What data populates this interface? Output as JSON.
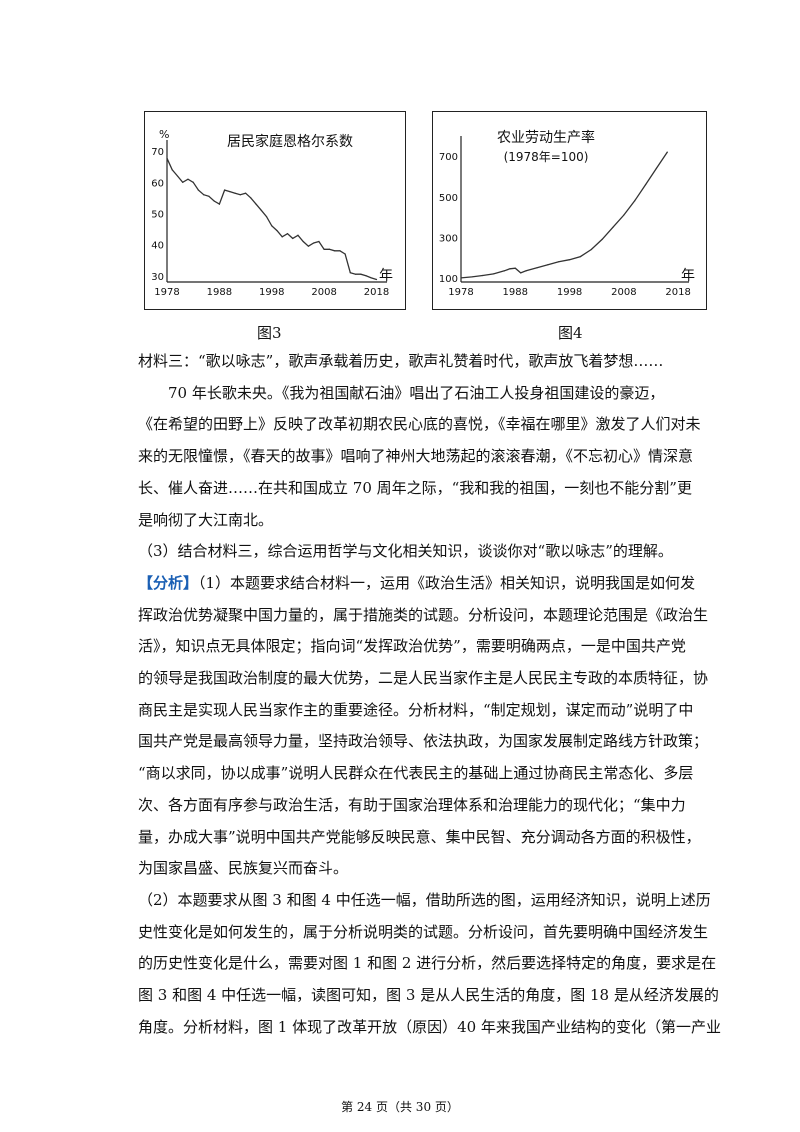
{
  "chart_data": [
    {
      "type": "line",
      "title": "居民家庭恩格尔系数",
      "ylabel": "%",
      "xlabel": "年",
      "x_ticks": [
        "1978",
        "1988",
        "1998",
        "2008",
        "2018"
      ],
      "y_ticks": [
        "70",
        "60",
        "50",
        "40",
        "30"
      ],
      "ylim": [
        28,
        71
      ],
      "xlim": [
        1978,
        2020
      ],
      "series": [
        {
          "x": [
            1978,
            1979,
            1980,
            1981,
            1982,
            1983,
            1984,
            1985,
            1986,
            1987,
            1988,
            1989,
            1990,
            1991,
            1992,
            1993,
            1994,
            1995,
            1996,
            1997,
            1998,
            1999,
            2000,
            2001,
            2002,
            2003,
            2004,
            2005,
            2006,
            2007,
            2008,
            2009,
            2010,
            2011,
            2012,
            2013,
            2014,
            2015,
            2016,
            2017,
            2018
          ],
          "values": [
            67.7,
            64,
            62,
            60,
            61,
            60,
            57.5,
            56,
            55.5,
            54,
            53,
            57.5,
            57,
            56.5,
            56,
            56.5,
            55,
            53,
            51,
            49,
            46,
            44.5,
            42.5,
            43.5,
            42,
            43,
            41,
            39.5,
            40.5,
            41,
            38.5,
            38.5,
            38,
            38,
            37,
            31,
            30.5,
            30.5,
            30,
            29.3,
            28.8
          ]
        }
      ]
    },
    {
      "type": "line",
      "title": "农业劳动生产率",
      "subtitle": "(1978年=100)",
      "xlabel": "年",
      "x_ticks": [
        "1978",
        "1988",
        "1998",
        "2008",
        "2018"
      ],
      "y_ticks": [
        "700",
        "500",
        "300",
        "100"
      ],
      "ylim": [
        80,
        760
      ],
      "xlim": [
        1978,
        2020
      ],
      "series": [
        {
          "x": [
            1978,
            1980,
            1982,
            1984,
            1986,
            1987,
            1988,
            1989,
            1990,
            1992,
            1994,
            1996,
            1998,
            2000,
            2002,
            2004,
            2006,
            2008,
            2010,
            2012,
            2014,
            2016
          ],
          "values": [
            100,
            105,
            112,
            120,
            135,
            145,
            148,
            125,
            135,
            150,
            165,
            180,
            190,
            205,
            240,
            290,
            350,
            410,
            480,
            560,
            640,
            720
          ]
        }
      ]
    }
  ],
  "figures": {
    "fig3": "图3",
    "fig4": "图4"
  },
  "body": {
    "lines": [
      "材料三：“歌以咏志”，歌声承载着历史，歌声礼赞着时代，歌声放飞着梦想……",
      "　　70 年长歌未央。《我为祖国献石油》唱出了石油工人投身祖国建设的豪迈，",
      "《在希望的田野上》反映了改革初期农民心底的喜悦，《幸福在哪里》激发了人们对未",
      "来的无限憧憬，《春天的故事》唱响了神州大地荡起的滚滚春潮，《不忘初心》情深意",
      "长、催人奋进……在共和国成立 70 周年之际，“我和我的祖国，一刻也不能分割”更",
      "是响彻了大江南北。",
      "（3）结合材料三，综合运用哲学与文化相关知识，谈谈你对“歌以咏志”的理解。"
    ],
    "analysis_tag": "【分析】",
    "analysis_first": "（1）本题要求结合材料一，运用《政治生活》相关知识，说明我国是如何发",
    "analysis_lines": [
      "挥政治优势凝聚中国力量的，属于措施类的试题。分析设问，本题理论范围是《政治生",
      "活》，知识点无具体限定；指向词“发挥政治优势”，需要明确两点，一是中国共产党",
      "的领导是我国政治制度的最大优势，二是人民当家作主是人民民主专政的本质特征，协",
      "商民主是实现人民当家作主的重要途径。分析材料，“制定规划，谋定而动”说明了中",
      "国共产党是最高领导力量，坚持政治领导、依法执政，为国家发展制定路线方针政策；",
      "“商以求同，协以成事”说明人民群众在代表民主的基础上通过协商民主常态化、多层",
      "次、各方面有序参与政治生活，有助于国家治理体系和治理能力的现代化；“集中力",
      "量，办成大事”说明中国共产党能够反映民意、集中民智、充分调动各方面的积极性，",
      "为国家昌盛、民族复兴而奋斗。",
      "（2）本题要求从图 3 和图 4 中任选一幅，借助所选的图，运用经济知识，说明上述历",
      "史性变化是如何发生的，属于分析说明类的试题。分析设问，首先要明确中国经济发生",
      "的历史性变化是什么，需要对图 1 和图 2 进行分析，然后要选择特定的角度，要求是在",
      "图 3 和图 4 中任选一幅，读图可知，图 3 是从人民生活的角度，图 18 是从经济发展的",
      "角度。分析材料，图 1 体现了改革开放（原因）40 年来我国产业结构的变化（第一产业"
    ]
  },
  "footer": {
    "text": "第 24 页（共 30 页）"
  }
}
